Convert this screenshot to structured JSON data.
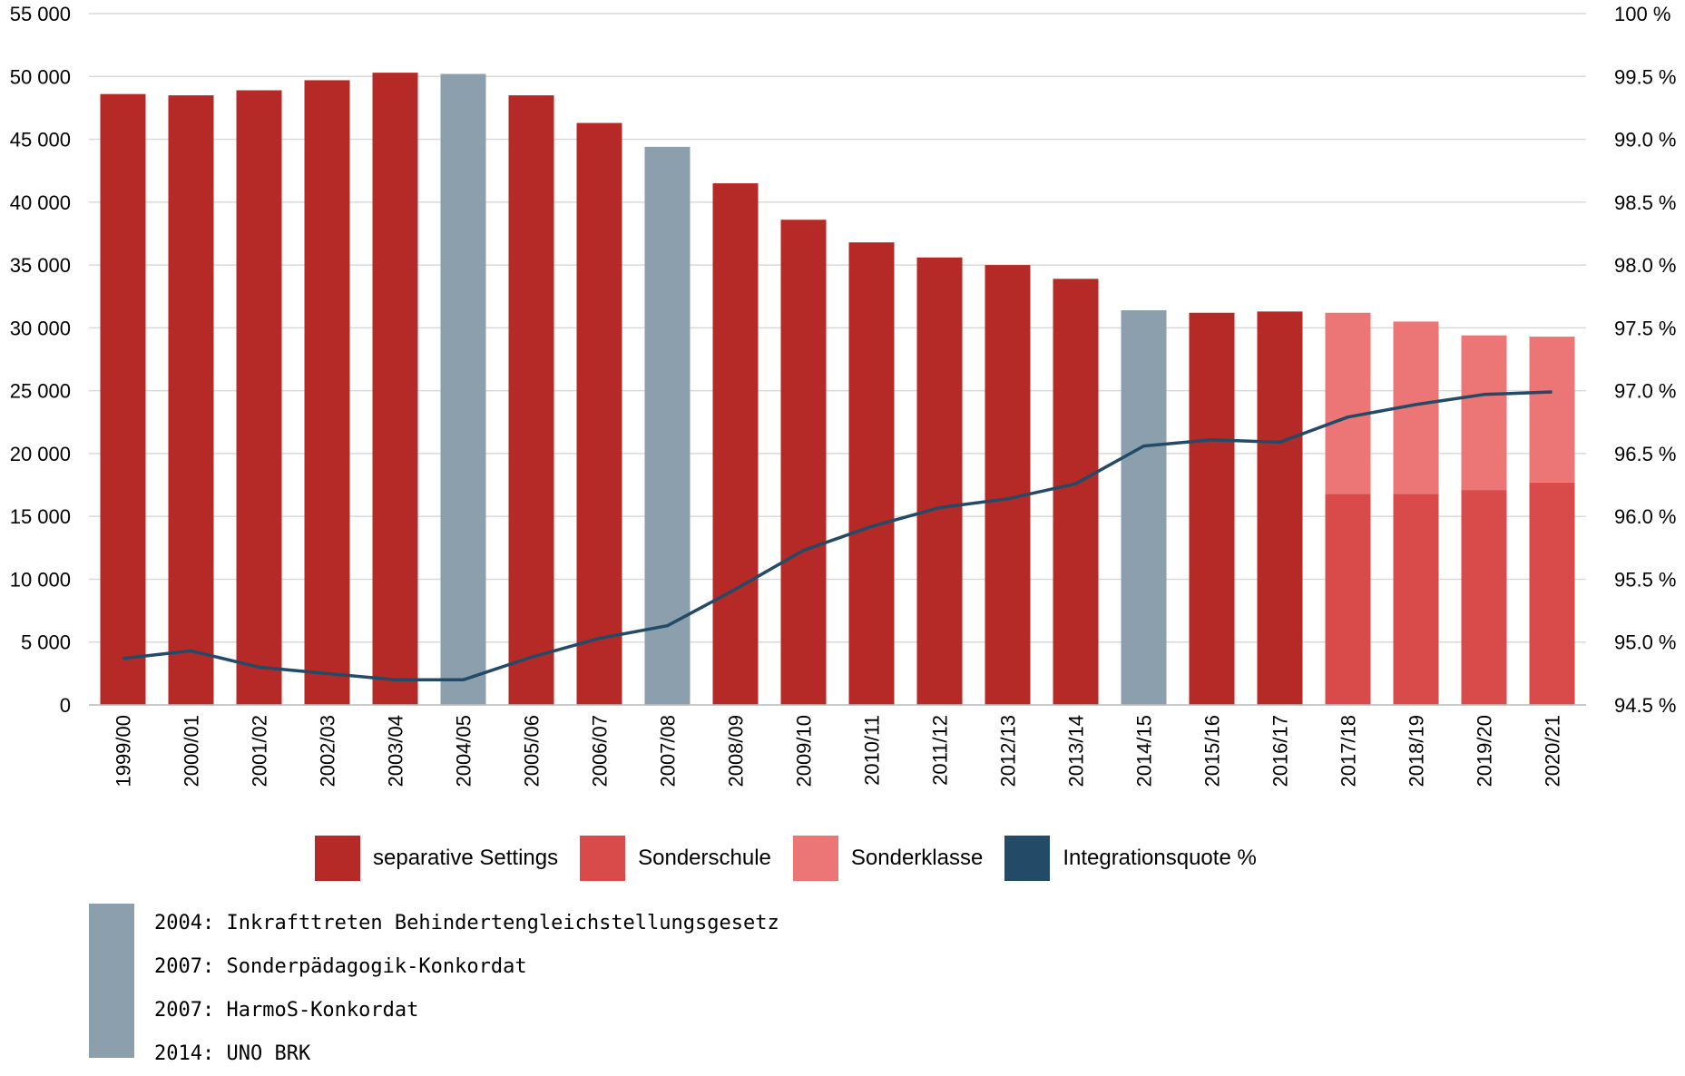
{
  "chart_data": {
    "type": "bar",
    "categories": [
      "1999/00",
      "2000/01",
      "2001/02",
      "2002/03",
      "2003/04",
      "2004/05",
      "2005/06",
      "2006/07",
      "2007/08",
      "2008/09",
      "2009/10",
      "2010/11",
      "2011/12",
      "2012/13",
      "2013/14",
      "2014/15",
      "2015/16",
      "2016/17",
      "2017/18",
      "2018/19",
      "2019/20",
      "2020/21"
    ],
    "series": [
      {
        "name": "separative Settings",
        "color": "#b52a26",
        "values": [
          48600,
          48500,
          48900,
          49700,
          50300,
          50200,
          48500,
          46300,
          44400,
          41500,
          38600,
          36800,
          35600,
          35000,
          33900,
          31400,
          31200,
          31300,
          null,
          null,
          null,
          null
        ]
      },
      {
        "name": "Sonderschule",
        "color": "#d94b4b",
        "values": [
          null,
          null,
          null,
          null,
          null,
          null,
          null,
          null,
          null,
          null,
          null,
          null,
          null,
          null,
          null,
          null,
          null,
          null,
          16800,
          16800,
          17100,
          17700
        ]
      },
      {
        "name": "Sonderklasse",
        "color": "#ec7676",
        "values": [
          null,
          null,
          null,
          null,
          null,
          null,
          null,
          null,
          null,
          null,
          null,
          null,
          null,
          null,
          null,
          null,
          null,
          null,
          14400,
          13700,
          12300,
          11600
        ]
      },
      {
        "name": "Integrationsquote %",
        "color": "#234a66",
        "axis": "right",
        "values": [
          94.87,
          94.93,
          94.8,
          94.75,
          94.7,
          94.7,
          94.88,
          95.03,
          95.13,
          95.42,
          95.73,
          95.92,
          96.07,
          96.14,
          96.26,
          96.56,
          96.61,
          96.59,
          96.79,
          96.89,
          96.97,
          96.99
        ]
      }
    ],
    "highlight_categories": [
      "2004/05",
      "2007/08",
      "2014/15"
    ],
    "highlight_color": "#8ba0ac",
    "ylim_left": [
      0,
      55000
    ],
    "yticks_left": [
      "0",
      "5 000",
      "10 000",
      "15 000",
      "20 000",
      "25 000",
      "30 000",
      "35 000",
      "40 000",
      "45 000",
      "50 000",
      "55 000"
    ],
    "ylim_right": [
      94.5,
      100
    ],
    "yticks_right": [
      "94.5 %",
      "95.0 %",
      "95.5 %",
      "96.0 %",
      "96.5 %",
      "97.0 %",
      "97.5 %",
      "98.0 %",
      "98.5 %",
      "99.0 %",
      "99.5 %",
      "100 %"
    ],
    "grid": true,
    "legend_position": "bottom",
    "xlabel": "",
    "ylabel": "",
    "title": ""
  },
  "legend": [
    {
      "label": "separative Settings",
      "color": "#b52a26"
    },
    {
      "label": "Sonderschule",
      "color": "#d94b4b"
    },
    {
      "label": "Sonderklasse",
      "color": "#ec7676"
    },
    {
      "label": "Integrationsquote %",
      "color": "#234a66"
    }
  ],
  "notes": [
    "2004: Inkrafttreten Behindertengleichstellungsgesetz",
    "2007: Sonderpädagogik-Konkordat",
    "2007: HarmoS-Konkordat",
    "2014: UNO BRK"
  ]
}
